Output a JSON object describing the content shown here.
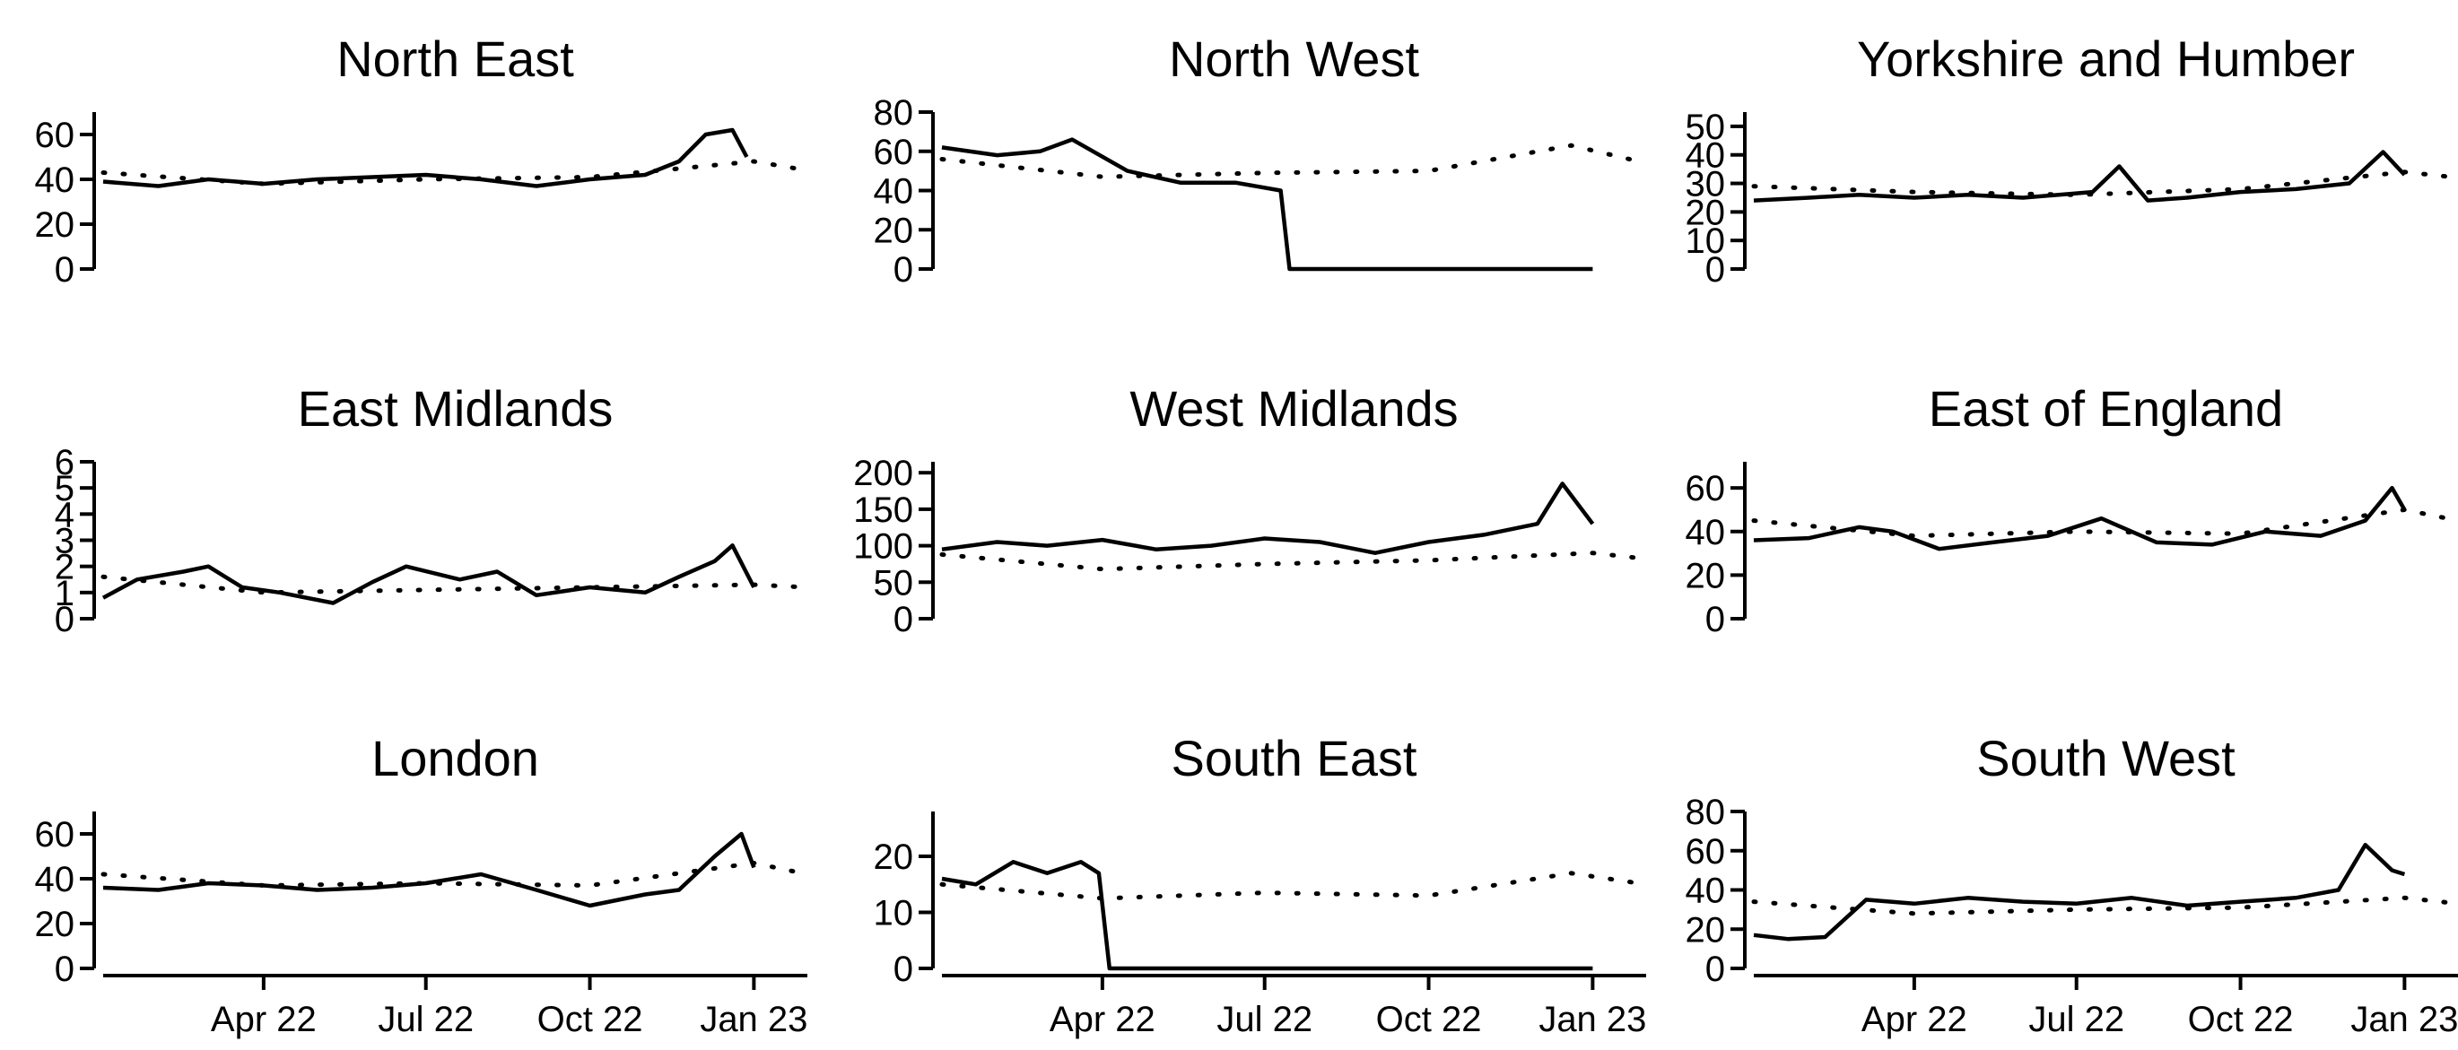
{
  "chart_data": {
    "type": "line",
    "layout": "3x3 small multiples",
    "x_tick_labels": [
      "Apr 22",
      "Jul 22",
      "Oct 22",
      "Jan 23"
    ],
    "x_ticks": [
      "2022-04-01",
      "2022-07-01",
      "2022-10-01",
      "2023-01-01"
    ],
    "xlim": [
      "2022-01-01",
      "2023-01-31"
    ],
    "grid": false,
    "legend": "none",
    "series_styles": [
      "solid",
      "dotted"
    ],
    "panels": [
      {
        "title": "North East",
        "ylim": [
          0,
          70
        ],
        "yticks": [
          0,
          20,
          40,
          60
        ],
        "solid": {
          "x": [
            "2022-01-01",
            "2022-02-01",
            "2022-03-01",
            "2022-04-01",
            "2022-05-01",
            "2022-06-01",
            "2022-07-01",
            "2022-08-01",
            "2022-09-01",
            "2022-10-01",
            "2022-11-01",
            "2022-11-20",
            "2022-12-05",
            "2022-12-20",
            "2022-12-28"
          ],
          "y": [
            39,
            37,
            40,
            38,
            40,
            41,
            42,
            40,
            37,
            40,
            42,
            48,
            60,
            62,
            50
          ]
        },
        "dotted": {
          "x": [
            "2022-01-01",
            "2022-04-01",
            "2022-07-01",
            "2022-10-01",
            "2023-01-01",
            "2023-01-31"
          ],
          "y": [
            43,
            38,
            40,
            41,
            48,
            44
          ]
        }
      },
      {
        "title": "North West",
        "ylim": [
          0,
          80
        ],
        "yticks": [
          0,
          20,
          40,
          60,
          80
        ],
        "solid": {
          "x": [
            "2022-01-01",
            "2022-02-01",
            "2022-02-25",
            "2022-03-15",
            "2022-04-15",
            "2022-05-15",
            "2022-06-15",
            "2022-07-10",
            "2022-07-15",
            "2022-10-01",
            "2023-01-01"
          ],
          "y": [
            62,
            58,
            60,
            66,
            50,
            44,
            44,
            40,
            0,
            0,
            0
          ]
        },
        "dotted": {
          "x": [
            "2022-01-01",
            "2022-04-01",
            "2022-07-01",
            "2022-10-01",
            "2022-12-20",
            "2023-01-31"
          ],
          "y": [
            56,
            47,
            49,
            50,
            63,
            54
          ]
        }
      },
      {
        "title": "Yorkshire and Humber",
        "ylim": [
          0,
          55
        ],
        "yticks": [
          0,
          10,
          20,
          30,
          40,
          50
        ],
        "solid": {
          "x": [
            "2022-01-01",
            "2022-02-01",
            "2022-03-01",
            "2022-04-01",
            "2022-05-01",
            "2022-06-01",
            "2022-07-10",
            "2022-07-25",
            "2022-08-10",
            "2022-09-01",
            "2022-10-01",
            "2022-11-01",
            "2022-12-01",
            "2022-12-20",
            "2023-01-01"
          ],
          "y": [
            24,
            25,
            26,
            25,
            26,
            25,
            27,
            36,
            24,
            25,
            27,
            28,
            30,
            41,
            33
          ]
        },
        "dotted": {
          "x": [
            "2022-01-01",
            "2022-04-01",
            "2022-07-01",
            "2022-10-01",
            "2023-01-01",
            "2023-01-31"
          ],
          "y": [
            29,
            27,
            26,
            28,
            34,
            32
          ]
        }
      },
      {
        "title": "East Midlands",
        "ylim": [
          0,
          6
        ],
        "yticks": [
          0,
          1,
          2,
          3,
          4,
          5,
          6
        ],
        "solid": {
          "x": [
            "2022-01-01",
            "2022-01-20",
            "2022-02-15",
            "2022-03-01",
            "2022-03-20",
            "2022-04-10",
            "2022-05-10",
            "2022-06-01",
            "2022-06-20",
            "2022-07-20",
            "2022-08-10",
            "2022-09-01",
            "2022-10-01",
            "2022-11-01",
            "2022-11-20",
            "2022-12-10",
            "2022-12-20",
            "2023-01-01"
          ],
          "y": [
            0.8,
            1.5,
            1.8,
            2.0,
            1.2,
            1.0,
            0.6,
            1.4,
            2.0,
            1.5,
            1.8,
            0.9,
            1.2,
            1.0,
            1.6,
            2.2,
            2.8,
            1.2
          ]
        },
        "dotted": {
          "x": [
            "2022-01-01",
            "2022-04-01",
            "2022-07-01",
            "2022-10-01",
            "2023-01-01",
            "2023-01-31"
          ],
          "y": [
            1.6,
            1.0,
            1.1,
            1.2,
            1.3,
            1.2
          ]
        }
      },
      {
        "title": "West Midlands",
        "ylim": [
          0,
          215
        ],
        "yticks": [
          0,
          50,
          100,
          150,
          200
        ],
        "solid": {
          "x": [
            "2022-01-01",
            "2022-02-01",
            "2022-03-01",
            "2022-04-01",
            "2022-05-01",
            "2022-06-01",
            "2022-07-01",
            "2022-08-01",
            "2022-09-01",
            "2022-10-01",
            "2022-11-01",
            "2022-12-01",
            "2022-12-15",
            "2023-01-01"
          ],
          "y": [
            95,
            105,
            100,
            108,
            95,
            100,
            110,
            105,
            90,
            105,
            115,
            130,
            185,
            130
          ]
        },
        "dotted": {
          "x": [
            "2022-01-01",
            "2022-04-01",
            "2022-07-01",
            "2022-10-01",
            "2023-01-01",
            "2023-01-31"
          ],
          "y": [
            88,
            68,
            75,
            80,
            90,
            82
          ]
        }
      },
      {
        "title": "East of England",
        "ylim": [
          0,
          72
        ],
        "yticks": [
          0,
          20,
          40,
          60
        ],
        "solid": {
          "x": [
            "2022-01-01",
            "2022-02-01",
            "2022-03-01",
            "2022-03-20",
            "2022-04-15",
            "2022-05-15",
            "2022-06-15",
            "2022-07-15",
            "2022-08-15",
            "2022-09-15",
            "2022-10-15",
            "2022-11-15",
            "2022-12-10",
            "2022-12-25",
            "2023-01-01"
          ],
          "y": [
            36,
            37,
            42,
            40,
            32,
            35,
            38,
            46,
            35,
            34,
            40,
            38,
            45,
            60,
            50
          ]
        },
        "dotted": {
          "x": [
            "2022-01-01",
            "2022-04-01",
            "2022-07-01",
            "2022-10-01",
            "2023-01-01",
            "2023-01-31"
          ],
          "y": [
            45,
            38,
            40,
            39,
            50,
            45
          ]
        }
      },
      {
        "title": "London",
        "ylim": [
          0,
          70
        ],
        "yticks": [
          0,
          20,
          40,
          60
        ],
        "solid": {
          "x": [
            "2022-01-01",
            "2022-02-01",
            "2022-03-01",
            "2022-04-01",
            "2022-05-01",
            "2022-06-01",
            "2022-07-01",
            "2022-08-01",
            "2022-09-01",
            "2022-10-01",
            "2022-11-01",
            "2022-11-20",
            "2022-12-10",
            "2022-12-25",
            "2023-01-01"
          ],
          "y": [
            36,
            35,
            38,
            37,
            35,
            36,
            38,
            42,
            35,
            28,
            33,
            35,
            50,
            60,
            45
          ]
        },
        "dotted": {
          "x": [
            "2022-01-01",
            "2022-04-01",
            "2022-07-01",
            "2022-10-01",
            "2023-01-01",
            "2023-01-31"
          ],
          "y": [
            42,
            37,
            38,
            37,
            47,
            42
          ]
        }
      },
      {
        "title": "South East",
        "ylim": [
          0,
          28
        ],
        "yticks": [
          0,
          10,
          20
        ],
        "solid": {
          "x": [
            "2022-01-01",
            "2022-01-20",
            "2022-02-10",
            "2022-03-01",
            "2022-03-20",
            "2022-03-30",
            "2022-04-05",
            "2022-07-01",
            "2022-10-01",
            "2023-01-01"
          ],
          "y": [
            16,
            15,
            19,
            17,
            19,
            17,
            0,
            0,
            0,
            0
          ]
        },
        "dotted": {
          "x": [
            "2022-01-01",
            "2022-04-01",
            "2022-07-01",
            "2022-10-01",
            "2022-12-20",
            "2023-01-31"
          ],
          "y": [
            15,
            12.5,
            13.5,
            13,
            17,
            15
          ]
        }
      },
      {
        "title": "South West",
        "ylim": [
          0,
          80
        ],
        "yticks": [
          0,
          20,
          40,
          60,
          80
        ],
        "solid": {
          "x": [
            "2022-01-01",
            "2022-01-20",
            "2022-02-10",
            "2022-03-05",
            "2022-04-01",
            "2022-05-01",
            "2022-06-01",
            "2022-07-01",
            "2022-08-01",
            "2022-09-01",
            "2022-10-01",
            "2022-11-01",
            "2022-11-25",
            "2022-12-10",
            "2022-12-25",
            "2023-01-01"
          ],
          "y": [
            17,
            15,
            16,
            35,
            33,
            36,
            34,
            33,
            36,
            32,
            34,
            36,
            40,
            63,
            50,
            48
          ]
        },
        "dotted": {
          "x": [
            "2022-01-01",
            "2022-04-01",
            "2022-07-01",
            "2022-10-01",
            "2023-01-01",
            "2023-01-31"
          ],
          "y": [
            34,
            28,
            30,
            31,
            36,
            33
          ]
        }
      }
    ]
  }
}
